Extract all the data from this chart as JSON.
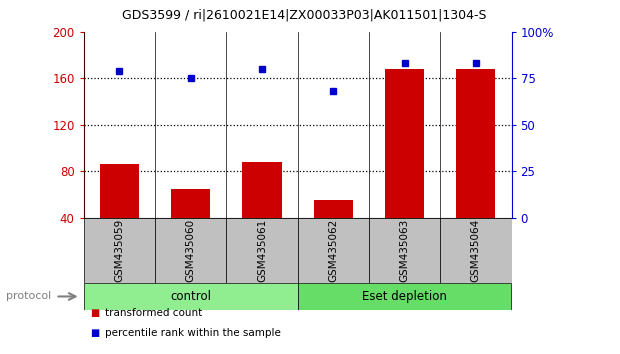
{
  "title": "GDS3599 / ri|2610021E14|ZX00033P03|AK011501|1304-S",
  "samples": [
    "GSM435059",
    "GSM435060",
    "GSM435061",
    "GSM435062",
    "GSM435063",
    "GSM435064"
  ],
  "red_values": [
    86,
    65,
    88,
    55,
    168,
    168
  ],
  "blue_percentile": [
    79,
    75,
    80,
    68,
    83,
    83
  ],
  "groups": [
    {
      "label": "control",
      "span": [
        0,
        3
      ],
      "color": "#90ee90"
    },
    {
      "label": "Eset depletion",
      "span": [
        3,
        6
      ],
      "color": "#66dd66"
    }
  ],
  "ylim_left": [
    40,
    200
  ],
  "ylim_right": [
    0,
    100
  ],
  "yticks_left": [
    40,
    80,
    120,
    160,
    200
  ],
  "yticks_right": [
    0,
    25,
    50,
    75,
    100
  ],
  "ytick_labels_left": [
    "40",
    "80",
    "120",
    "160",
    "200"
  ],
  "ytick_labels_right": [
    "0",
    "25",
    "50",
    "75",
    "100%"
  ],
  "left_axis_color": "#cc0000",
  "right_axis_color": "#0000cc",
  "bar_color": "#cc0000",
  "dot_color": "#0000cc",
  "grid_yticks": [
    80,
    120,
    160
  ],
  "plot_bg": "#ffffff",
  "sample_box_color": "#c0c0c0",
  "legend_red_label": "transformed count",
  "legend_blue_label": "percentile rank within the sample",
  "protocol_label": "protocol",
  "bar_width": 0.55
}
